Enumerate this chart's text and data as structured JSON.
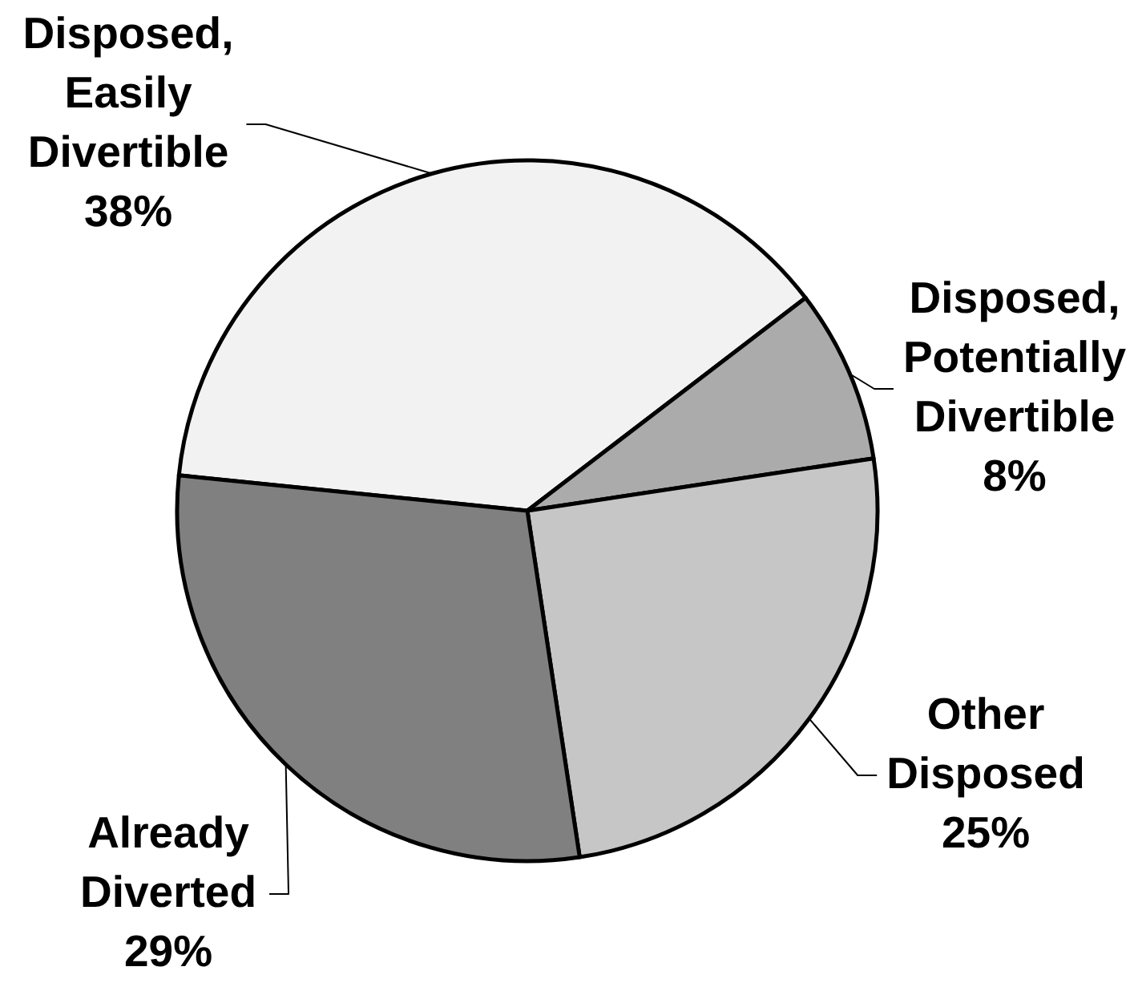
{
  "chart_data": {
    "type": "pie",
    "categories": [
      "Disposed, Easily Divertible",
      "Disposed, Potentially Divertible",
      "Other Disposed",
      "Already Diverted"
    ],
    "values": [
      38,
      8,
      25,
      29
    ],
    "colors": [
      "#f2f2f2",
      "#ababab",
      "#c6c6c6",
      "#808080"
    ],
    "value_labels": [
      "38%",
      "8%",
      "25%",
      "29%"
    ]
  }
}
